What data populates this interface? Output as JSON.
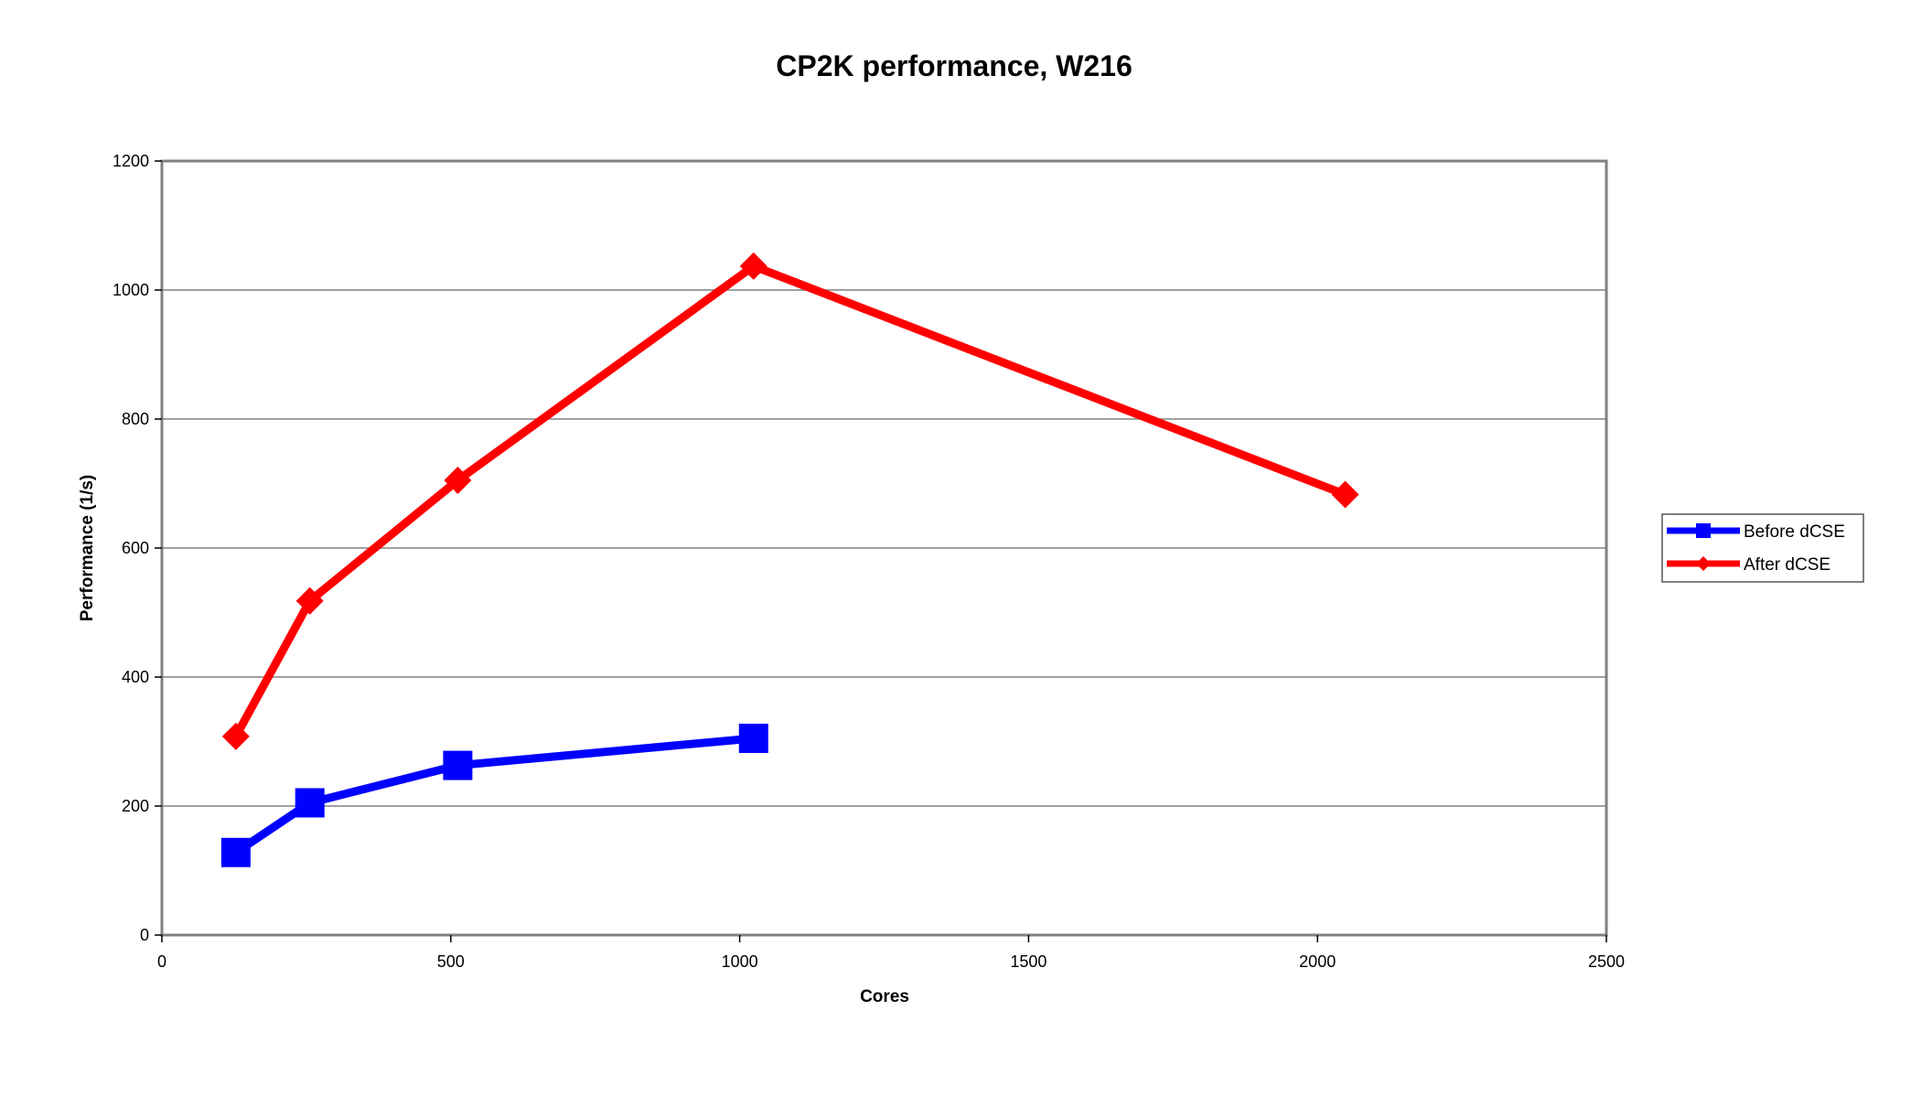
{
  "chart_data": {
    "type": "line",
    "title": "CP2K performance, W216",
    "xlabel": "Cores",
    "ylabel": "Performance (1/s)",
    "xlim": [
      0,
      2500
    ],
    "ylim": [
      0,
      1200
    ],
    "xticks": [
      0,
      500,
      1000,
      1500,
      2000,
      2500
    ],
    "yticks": [
      0,
      200,
      400,
      600,
      800,
      1000,
      1200
    ],
    "grid": "horizontal",
    "legend_position": "right",
    "series": [
      {
        "name": "Before dCSE",
        "color": "#0000ff",
        "marker": "square",
        "x": [
          128,
          256,
          512,
          1024
        ],
        "y": [
          128,
          205,
          263,
          305
        ]
      },
      {
        "name": "After dCSE",
        "color": "#ff0000",
        "marker": "diamond",
        "x": [
          128,
          256,
          512,
          1024,
          2048
        ],
        "y": [
          308,
          518,
          705,
          1037,
          683
        ]
      }
    ]
  }
}
